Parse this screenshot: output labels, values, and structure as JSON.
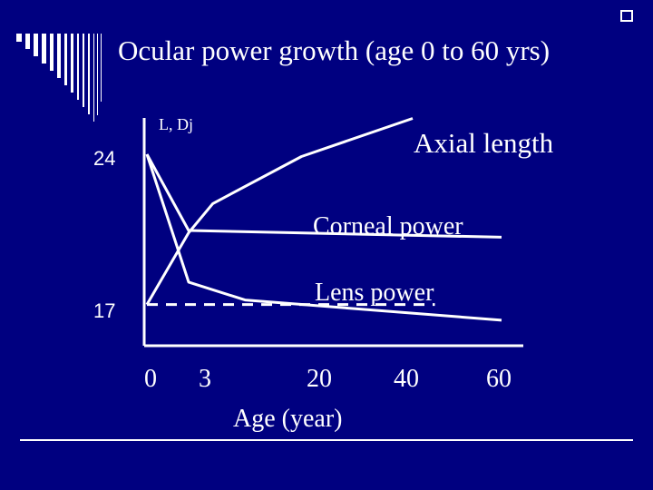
{
  "slide": {
    "title": "Ocular power growth (age 0 to 60  yrs)",
    "author_label": "L,  Dj"
  },
  "colors": {
    "background": "#000080",
    "foreground": "#ffffff"
  },
  "chart_data": {
    "type": "line",
    "title": "Ocular power growth (age 0 to 60  yrs)",
    "xlabel": "Age (year)",
    "ylabel": "",
    "x_ticks": [
      "0",
      "3",
      "20",
      "40",
      "60"
    ],
    "y_ticks": [
      "24",
      "17"
    ],
    "series": [
      {
        "name": "Axial length",
        "x": [
          0,
          3,
          6,
          17,
          40
        ],
        "y": [
          17.3,
          20.5,
          21.8,
          23.9,
          25.6
        ]
      },
      {
        "name": "Corneal power",
        "x": [
          0,
          3,
          60
        ],
        "y": [
          24,
          20.6,
          20.3
        ]
      },
      {
        "name": "Lens power",
        "x": [
          0,
          3,
          10,
          60
        ],
        "y": [
          24,
          18.3,
          17.5,
          16.6
        ]
      },
      {
        "name": "",
        "style": "dashed",
        "x": [
          0,
          45
        ],
        "y": [
          17.3,
          17.3
        ]
      }
    ],
    "grid": false,
    "legend": "none"
  }
}
